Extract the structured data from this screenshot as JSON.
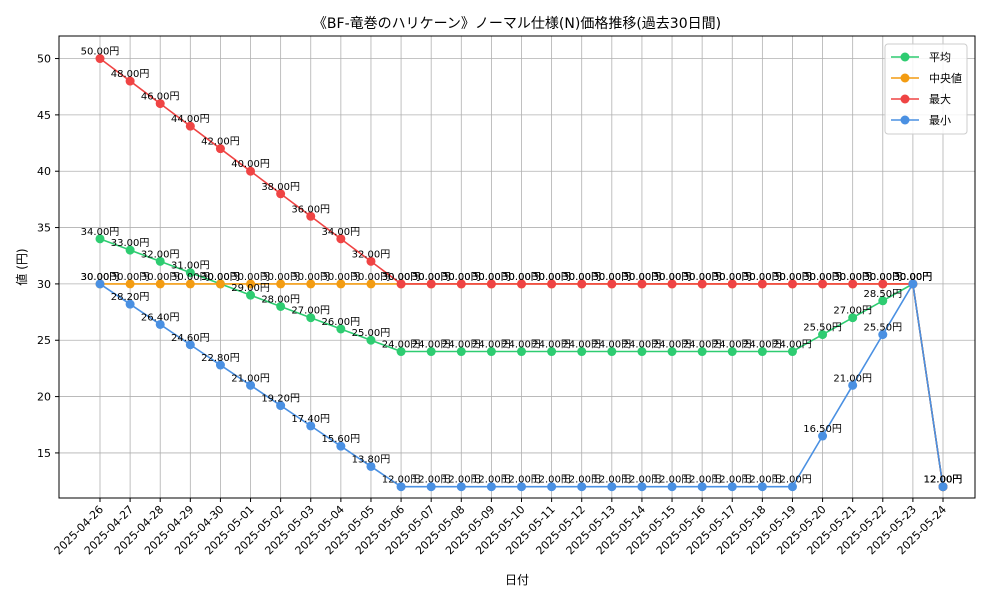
{
  "chart_data": {
    "type": "line",
    "title": "《BF-竜巻のハリケーン》ノーマル仕様(N)価格推移(過去30日間)",
    "xlabel": "日付",
    "ylabel": "値 (円)",
    "ylim": [
      11,
      52
    ],
    "yticks": [
      15,
      20,
      25,
      30,
      35,
      40,
      45,
      50
    ],
    "grid": true,
    "legend_position": "top-right",
    "value_suffix": "円",
    "categories": [
      "2025-04-26",
      "2025-04-27",
      "2025-04-28",
      "2025-04-29",
      "2025-04-30",
      "2025-05-01",
      "2025-05-02",
      "2025-05-03",
      "2025-05-04",
      "2025-05-05",
      "2025-05-06",
      "2025-05-07",
      "2025-05-08",
      "2025-05-09",
      "2025-05-10",
      "2025-05-11",
      "2025-05-12",
      "2025-05-13",
      "2025-05-14",
      "2025-05-15",
      "2025-05-16",
      "2025-05-17",
      "2025-05-18",
      "2025-05-19",
      "2025-05-20",
      "2025-05-21",
      "2025-05-22",
      "2025-05-23",
      "2025-05-24"
    ],
    "series": [
      {
        "name": "平均",
        "color": "#2ecc71",
        "values": [
          34,
          33,
          32,
          31,
          30,
          29,
          28,
          27,
          26,
          25,
          24,
          24,
          24,
          24,
          24,
          24,
          24,
          24,
          24,
          24,
          24,
          24,
          24,
          24,
          25.5,
          27,
          28.5,
          30,
          12
        ]
      },
      {
        "name": "中央値",
        "color": "#f39c12",
        "values": [
          30,
          30,
          30,
          30,
          30,
          30,
          30,
          30,
          30,
          30,
          30,
          30,
          30,
          30,
          30,
          30,
          30,
          30,
          30,
          30,
          30,
          30,
          30,
          30,
          30,
          30,
          30,
          30,
          12
        ]
      },
      {
        "name": "最大",
        "color": "#ef4444",
        "values": [
          50,
          48,
          46,
          44,
          42,
          40,
          38,
          36,
          34,
          32,
          30,
          30,
          30,
          30,
          30,
          30,
          30,
          30,
          30,
          30,
          30,
          30,
          30,
          30,
          30,
          30,
          30,
          30,
          12
        ]
      },
      {
        "name": "最小",
        "color": "#4a90e2",
        "values": [
          30,
          28.2,
          26.4,
          24.6,
          22.8,
          21,
          19.2,
          17.4,
          15.6,
          13.8,
          12,
          12,
          12,
          12,
          12,
          12,
          12,
          12,
          12,
          12,
          12,
          12,
          12,
          12,
          16.5,
          21,
          25.5,
          30,
          12
        ]
      }
    ]
  }
}
